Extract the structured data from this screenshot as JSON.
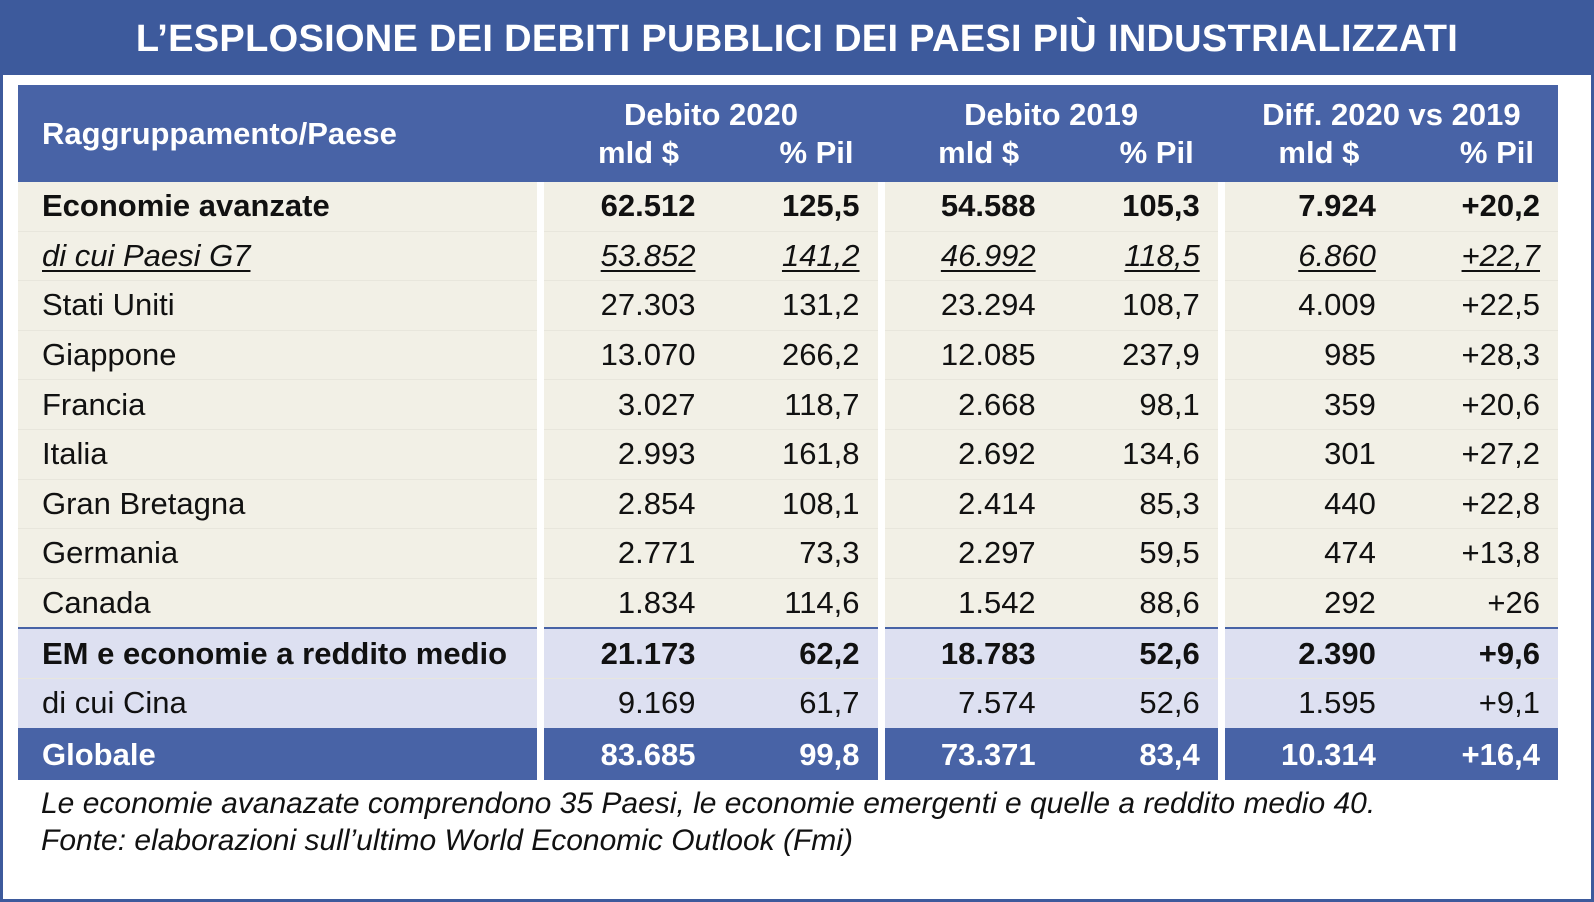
{
  "title": "L’ESPLOSIONE DEI DEBITI PUBBLICI DEI PAESI PIÙ INDUSTRIALIZZATI",
  "header": {
    "first": "Raggruppamento/Paese",
    "groups": [
      "Debito 2020",
      "Debito 2019",
      "Diff. 2020 vs 2019"
    ],
    "sub1": "mld $",
    "sub2": "% Pil"
  },
  "rows": [
    {
      "label": "Economie avanzate",
      "v": [
        "62.512",
        "125,5",
        "54.588",
        "105,3",
        "7.924",
        "+20,2"
      ]
    },
    {
      "label": "di cui Paesi G7",
      "v": [
        "53.852",
        "141,2",
        "46.992",
        "118,5",
        "6.860",
        "+22,7"
      ]
    },
    {
      "label": "Stati Uniti",
      "v": [
        "27.303",
        "131,2",
        "23.294",
        "108,7",
        "4.009",
        "+22,5"
      ]
    },
    {
      "label": "Giappone",
      "v": [
        "13.070",
        "266,2",
        "12.085",
        "237,9",
        "985",
        "+28,3"
      ]
    },
    {
      "label": "Francia",
      "v": [
        "3.027",
        "118,7",
        "2.668",
        "98,1",
        "359",
        "+20,6"
      ]
    },
    {
      "label": "Italia",
      "v": [
        "2.993",
        "161,8",
        "2.692",
        "134,6",
        "301",
        "+27,2"
      ]
    },
    {
      "label": "Gran Bretagna",
      "v": [
        "2.854",
        "108,1",
        "2.414",
        "85,3",
        "440",
        "+22,8"
      ]
    },
    {
      "label": "Germania",
      "v": [
        "2.771",
        "73,3",
        "2.297",
        "59,5",
        "474",
        "+13,8"
      ]
    },
    {
      "label": "Canada",
      "v": [
        "1.834",
        "114,6",
        "1.542",
        "88,6",
        "292",
        "+26"
      ]
    },
    {
      "label": "EM e economie a reddito medio",
      "v": [
        "21.173",
        "62,2",
        "18.783",
        "52,6",
        "2.390",
        "+9,6"
      ]
    },
    {
      "label": "di cui Cina",
      "v": [
        "9.169",
        "61,7",
        "7.574",
        "52,6",
        "1.595",
        "+9,1"
      ]
    },
    {
      "label": "Globale",
      "v": [
        "83.685",
        "99,8",
        "73.371",
        "83,4",
        "10.314",
        "+16,4"
      ]
    }
  ],
  "notes": [
    "Le economie avanazate comprendono 35 Paesi, le economie emergenti e quelle a reddito medio 40.",
    "Fonte: elaborazioni sull’ultimo World Economic Outlook (Fmi)"
  ]
}
